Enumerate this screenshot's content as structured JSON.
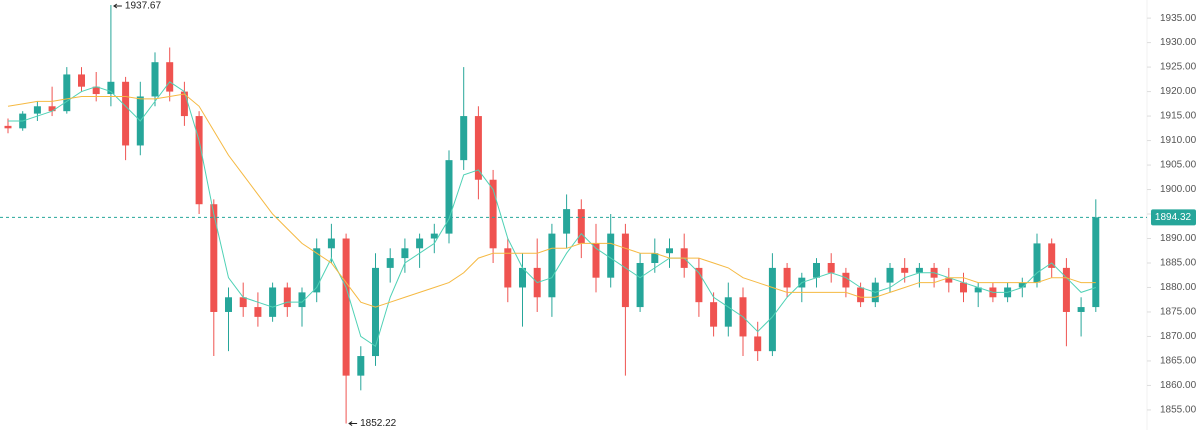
{
  "chart_data": {
    "type": "candlestick",
    "up_color": "#26a69a",
    "down_color": "#ef5350",
    "grid": false,
    "ylim": [
      1850.9,
      1938.7
    ],
    "yticks": [
      {
        "value": 1855,
        "label": "1855.00"
      },
      {
        "value": 1860,
        "label": "1860.00"
      },
      {
        "value": 1865,
        "label": "1865.00"
      },
      {
        "value": 1870,
        "label": "1870.00"
      },
      {
        "value": 1875,
        "label": "1875.00"
      },
      {
        "value": 1880,
        "label": "1880.00"
      },
      {
        "value": 1885,
        "label": "1885.00"
      },
      {
        "value": 1890,
        "label": "1890.00"
      },
      {
        "value": 1895,
        "label": "1895.00"
      },
      {
        "value": 1900,
        "label": "1900.00"
      },
      {
        "value": 1905,
        "label": "1905.00"
      },
      {
        "value": 1910,
        "label": "1910.00"
      },
      {
        "value": 1915,
        "label": "1915.00"
      },
      {
        "value": 1920,
        "label": "1920.00"
      },
      {
        "value": 1925,
        "label": "1925.00"
      },
      {
        "value": 1930,
        "label": "1930.00"
      },
      {
        "value": 1935,
        "label": "1935.00"
      }
    ],
    "open": [
      1913,
      1912.5,
      1915.5,
      1917,
      1916,
      1923.5,
      1921,
      1919.5,
      1922,
      1909,
      1919,
      1926,
      1920,
      1915,
      1897,
      1875,
      1878,
      1876,
      1874,
      1880,
      1876,
      1879,
      1888,
      1890,
      1862,
      1866,
      1884,
      1886,
      1888,
      1890,
      1891,
      1906,
      1915,
      1902,
      1888,
      1880,
      1884,
      1878,
      1891,
      1896,
      1889,
      1882,
      1891,
      1876,
      1885,
      1887,
      1888,
      1884,
      1877,
      1872,
      1878,
      1870,
      1867,
      1884,
      1880,
      1882,
      1885,
      1883,
      1880,
      1877,
      1881,
      1884,
      1883,
      1884,
      1882,
      1881,
      1879,
      1880,
      1878,
      1880,
      1881,
      1889,
      1884,
      1875,
      1876
    ],
    "high": [
      1914.5,
      1916,
      1918,
      1921,
      1925,
      1925,
      1924,
      1937.67,
      1923,
      1922,
      1928,
      1929,
      1922,
      1916,
      1898,
      1880,
      1881,
      1879,
      1881,
      1881,
      1880,
      1890,
      1893,
      1891,
      1868,
      1887,
      1888,
      1890,
      1891,
      1893,
      1908,
      1925,
      1917,
      1904,
      1890,
      1887,
      1890,
      1893,
      1899,
      1898,
      1893,
      1895,
      1893,
      1887,
      1890,
      1890,
      1891,
      1886,
      1879,
      1881,
      1880,
      1873,
      1887,
      1885,
      1883,
      1886,
      1887,
      1884,
      1881,
      1882,
      1885,
      1886,
      1885,
      1885,
      1884,
      1883,
      1881,
      1881,
      1881,
      1882,
      1891,
      1890,
      1886,
      1878,
      1898
    ],
    "low": [
      1911.5,
      1912,
      1914,
      1915,
      1915.5,
      1920,
      1918,
      1917,
      1906,
      1907,
      1917,
      1918,
      1913,
      1895,
      1866,
      1867,
      1874,
      1872,
      1873,
      1874,
      1872,
      1877,
      1885,
      1852.22,
      1859,
      1864,
      1881,
      1883,
      1884,
      1887,
      1889,
      1904,
      1898,
      1885,
      1877,
      1872,
      1875,
      1874,
      1888,
      1886,
      1879,
      1880,
      1862,
      1875,
      1883,
      1884,
      1882,
      1874,
      1870,
      1870,
      1866,
      1865,
      1866,
      1878,
      1877,
      1880,
      1881,
      1878,
      1876,
      1876,
      1879,
      1881,
      1880,
      1880,
      1879,
      1877,
      1876,
      1877,
      1877,
      1878,
      1880,
      1882,
      1868,
      1870,
      1875
    ],
    "close": [
      1912.5,
      1915.5,
      1917,
      1916,
      1923.5,
      1921,
      1919.5,
      1922,
      1909,
      1919,
      1926,
      1920,
      1915,
      1897,
      1875,
      1878,
      1876,
      1874,
      1880,
      1876,
      1879,
      1888,
      1890,
      1862,
      1866,
      1884,
      1886,
      1888,
      1890,
      1891,
      1906,
      1915,
      1902,
      1888,
      1880,
      1884,
      1878,
      1891,
      1896,
      1889,
      1882,
      1891,
      1876,
      1885,
      1887,
      1888,
      1884,
      1877,
      1872,
      1878,
      1870,
      1867,
      1884,
      1880,
      1882,
      1885,
      1883,
      1880,
      1877,
      1881,
      1884,
      1883,
      1884,
      1882,
      1881,
      1879,
      1880,
      1878,
      1880,
      1881,
      1889,
      1884,
      1875,
      1876,
      1894.32
    ],
    "series": [
      {
        "color": "#4fd1b5",
        "values": [
          1914,
          1914,
          1915,
          1916,
          1918,
          1920,
          1921,
          1920,
          1917,
          1914,
          1918,
          1922,
          1920,
          1910,
          1895,
          1882,
          1878,
          1877,
          1876,
          1877,
          1877,
          1880,
          1886,
          1880,
          1870,
          1868,
          1878,
          1885,
          1887,
          1889,
          1894,
          1903,
          1904,
          1900,
          1890,
          1884,
          1881,
          1882,
          1887,
          1891,
          1888,
          1886,
          1884,
          1882,
          1884,
          1886,
          1886,
          1883,
          1878,
          1876,
          1874,
          1871,
          1874,
          1878,
          1881,
          1882,
          1883,
          1882,
          1880,
          1879,
          1880,
          1882,
          1883,
          1883,
          1882,
          1881,
          1880,
          1879,
          1879,
          1880,
          1883,
          1885,
          1882,
          1879,
          1880
        ]
      },
      {
        "color": "#f5b942",
        "values": [
          1917,
          1917.5,
          1918,
          1918,
          1918.5,
          1919,
          1919,
          1919,
          1919,
          1918.5,
          1918.5,
          1919,
          1919.5,
          1917,
          1912,
          1907,
          1903,
          1899,
          1895,
          1892,
          1889,
          1887,
          1885,
          1881,
          1877,
          1876,
          1877,
          1878,
          1879,
          1880,
          1881,
          1883,
          1886,
          1887,
          1887,
          1887,
          1887,
          1888,
          1888,
          1889,
          1889,
          1889,
          1888,
          1887,
          1887,
          1886,
          1886,
          1886,
          1885,
          1884,
          1882,
          1881,
          1880,
          1879,
          1879,
          1879,
          1879,
          1879,
          1878,
          1878,
          1879,
          1880,
          1881,
          1881,
          1882,
          1882,
          1881,
          1881,
          1881,
          1881,
          1881,
          1882,
          1882,
          1881,
          1881
        ]
      }
    ]
  }
}
